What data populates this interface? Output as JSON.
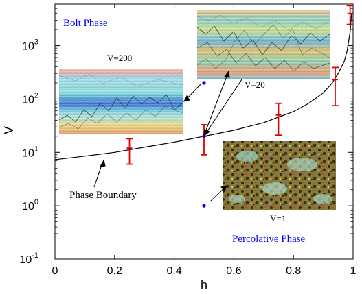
{
  "chart_data": {
    "type": "scatter",
    "xlabel": "h",
    "ylabel": "V",
    "xlim": [
      0,
      1
    ],
    "ylim": [
      0.1,
      6000
    ],
    "yscale": "log",
    "grid": false,
    "x_ticks": [
      {
        "value": 0,
        "label": "0"
      },
      {
        "value": 0.2,
        "label": "0.2"
      },
      {
        "value": 0.4,
        "label": "0.4"
      },
      {
        "value": 0.6,
        "label": "0.6"
      },
      {
        "value": 0.8,
        "label": "0.8"
      },
      {
        "value": 1,
        "label": "1"
      }
    ],
    "y_ticks": [
      {
        "value": 0.1,
        "base": "10",
        "exp": "-1"
      },
      {
        "value": 1,
        "base": "10",
        "exp": "0"
      },
      {
        "value": 10,
        "base": "10",
        "exp": "1"
      },
      {
        "value": 100,
        "base": "10",
        "exp": "2"
      },
      {
        "value": 1000,
        "base": "10",
        "exp": "3"
      }
    ],
    "phase_boundary_points": [
      {
        "h": 0.25,
        "V": 12,
        "err_low": 6,
        "err_high": 18
      },
      {
        "h": 0.5,
        "V": 20,
        "err_low": 9,
        "err_high": 33
      },
      {
        "h": 0.75,
        "V": 50,
        "err_low": 21,
        "err_high": 83
      },
      {
        "h": 0.94,
        "V": 230,
        "err_low": 75,
        "err_high": 390
      },
      {
        "h": 0.99,
        "V": 4000,
        "err_low": 2500,
        "err_high": 5600
      }
    ],
    "boundary_curve": {
      "h": [
        0,
        0.1,
        0.2,
        0.3,
        0.4,
        0.5,
        0.6,
        0.7,
        0.8,
        0.85,
        0.9,
        0.93,
        0.95,
        0.97,
        0.98,
        0.99,
        0.995
      ],
      "V": [
        7.3,
        8.5,
        10,
        12.5,
        15.5,
        20,
        26,
        36,
        58,
        82,
        130,
        200,
        300,
        500,
        800,
        1800,
        4000
      ]
    },
    "sample_points": [
      {
        "h": 0.5,
        "V": 200
      },
      {
        "h": 0.5,
        "V": 20
      },
      {
        "h": 0.5,
        "V": 1
      }
    ],
    "annotations": [
      {
        "text": "Bolt Phase",
        "color": "#0000ff"
      },
      {
        "text": "Percolative Phase",
        "color": "#0000ff"
      },
      {
        "text": "Phase Boundary",
        "color": "#000000"
      },
      {
        "text": "V=200",
        "color": "#000000"
      },
      {
        "text": "V=20",
        "color": "#000000"
      },
      {
        "text": "V=1",
        "color": "#000000"
      }
    ],
    "colors": {
      "curve": "#000000",
      "errorbar": "#e00000",
      "sample_point": "#0000ff",
      "phase_label": "#0000ff"
    }
  }
}
